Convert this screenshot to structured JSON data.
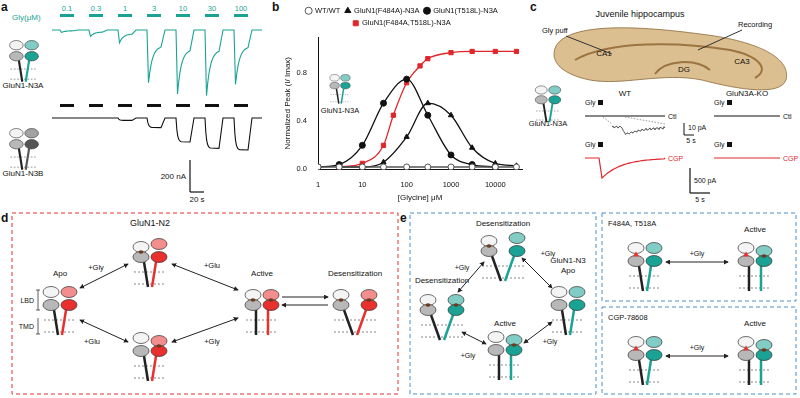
{
  "panel_a": {
    "label": "a",
    "gly_label": "Gly(μM)",
    "concentrations": [
      0.1,
      0.3,
      1,
      3,
      10,
      30,
      100
    ],
    "traces": [
      {
        "name": "GluN1-N3A",
        "color": "#1aa394",
        "peaks_nA": [
          15,
          40,
          80,
          330,
          400,
          410,
          340
        ]
      },
      {
        "name": "GluN1-N3B",
        "color": "#111111",
        "peaks_nA": [
          0,
          0,
          15,
          60,
          150,
          190,
          200
        ]
      }
    ],
    "scale_bar": {
      "current": {
        "value": 200,
        "label": "200 nA"
      },
      "time": {
        "value": 20,
        "label": "20 s"
      }
    }
  },
  "chart_data": {
    "type": "line",
    "panel_label": "b",
    "x_label": "[Glycine] μM",
    "y_label": "Normalized Peak (I/ Imax)",
    "inset_label": "GluN1-N3A",
    "log": "x",
    "grid": false,
    "legend": "top",
    "xlim": [
      1,
      40000
    ],
    "xticks": [
      1,
      10,
      100,
      1000,
      10000
    ],
    "ylim": [
      0,
      1.1
    ],
    "yticks": [
      {
        "value": 0,
        "label": "0.0"
      },
      {
        "value": 0.4,
        "label": "0.4"
      },
      {
        "value": 0.8,
        "label": "0.8"
      }
    ],
    "series": [
      {
        "name": "WT/WT",
        "color": "#555555",
        "marker": "open_circle",
        "x": [
          1,
          3,
          10,
          30,
          100,
          300,
          1000,
          3000,
          10000,
          30000
        ],
        "values": [
          0.02,
          0.02,
          0.02,
          0.02,
          0.02,
          0.02,
          0.02,
          0.02,
          0.02,
          0.02
        ]
      },
      {
        "name": "GluN1(F484A)-N3A",
        "color": "#111111",
        "marker": "triangle",
        "x": [
          3,
          10,
          30,
          100,
          300,
          1000,
          3000,
          10000,
          30000
        ],
        "values": [
          0.02,
          0.02,
          0.06,
          0.27,
          0.55,
          0.45,
          0.18,
          0.05,
          0.03
        ]
      },
      {
        "name": "GluN1(T518L)-N3A",
        "color": "#111111",
        "marker": "circle",
        "x": [
          1,
          3,
          10,
          30,
          100,
          300,
          1000,
          3000,
          10000
        ],
        "values": [
          0.02,
          0.04,
          0.2,
          0.55,
          0.75,
          0.45,
          0.12,
          0.04,
          0.02
        ]
      },
      {
        "name": "GluN1(F484A,T518L)-N3A",
        "color": "#e0262b",
        "marker": "square",
        "x": [
          3,
          10,
          30,
          50,
          100,
          200,
          300,
          1000,
          3000,
          10000,
          30000
        ],
        "values": [
          0.02,
          0.05,
          0.2,
          0.45,
          0.72,
          0.86,
          0.92,
          0.97,
          0.98,
          0.98,
          0.98
        ]
      }
    ]
  },
  "panel_c": {
    "label": "c",
    "title": "Juvenile hippocampus",
    "regions": [
      "CA1",
      "CA3",
      "DG"
    ],
    "gly_puff": "Gly puff",
    "recording": "Recording",
    "receptor": "GluN1-N3A",
    "stimulus": "Gly",
    "columns": [
      {
        "name": "WT",
        "traces": [
          {
            "condition": "Ctl",
            "color": "#111111",
            "peak_pA": 8
          },
          {
            "condition": "CGP",
            "color": "#e0262b",
            "peak_pA": 400
          }
        ]
      },
      {
        "name": "GluN3A-KO",
        "traces": [
          {
            "condition": "Ctl",
            "color": "#111111",
            "peak_pA": 0
          },
          {
            "condition": "CGP",
            "color": "#e0262b",
            "peak_pA": 0
          }
        ]
      }
    ],
    "inset_scale": {
      "current": {
        "value": 10,
        "label": "10 pA"
      },
      "time": {
        "value": 5,
        "label": "5 s"
      }
    },
    "scale": {
      "current": {
        "value": 500,
        "label": "500 pA"
      },
      "time": {
        "value": 5,
        "label": "5 s"
      }
    }
  },
  "panel_d": {
    "label": "d",
    "title": "GluN1-N2",
    "apo": "Apo",
    "active": "Active",
    "desensitization": "Desensitization",
    "gly": "+Gly",
    "glu": "+Glu",
    "lbd": "LBD",
    "tmd": "TMD"
  },
  "panel_e": {
    "label": "e",
    "apo": [
      "GluN1-N3",
      "Apo"
    ],
    "active": "Active",
    "desensitization": "Desensitization",
    "gly": "+Gly",
    "mutant": "F484A, T518A",
    "drug": "CGP-78608"
  }
}
